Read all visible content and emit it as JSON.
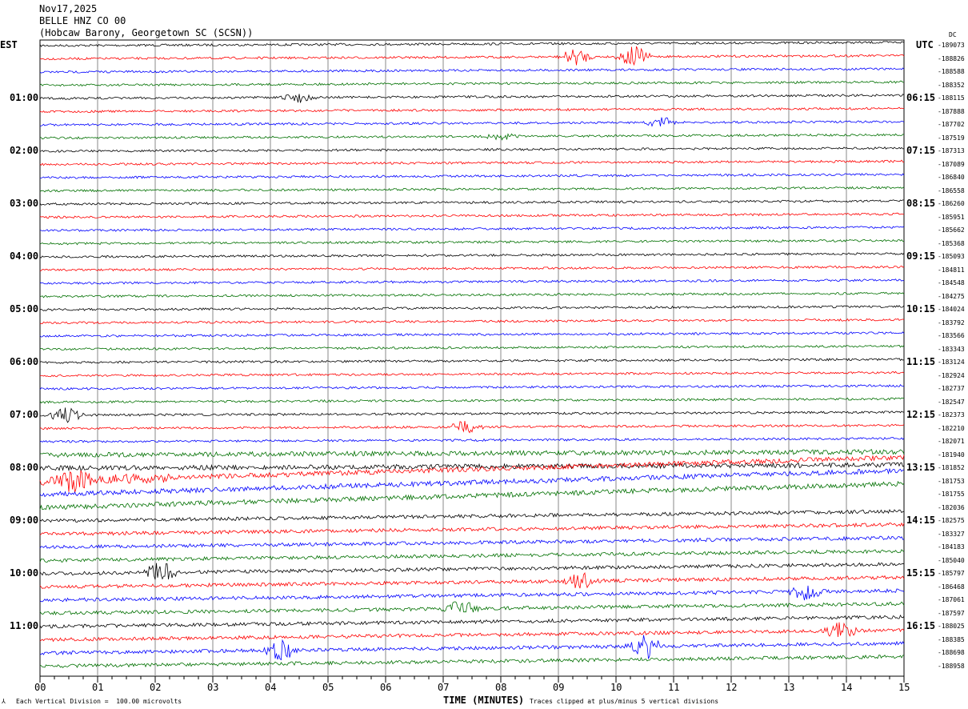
{
  "header": {
    "date": "Nov17,2025",
    "station": "BELLE HNZ CO 00",
    "location": "(Hobcaw Barony, Georgetown SC (SCSN))"
  },
  "left_tz": "EST",
  "right_tz": "UTC",
  "dc_label": "DC",
  "footer": {
    "scale_note": "Each Vertical Division =  100.00 microvolts",
    "xlabel": "TIME (MINUTES)",
    "clip_note": "Traces clipped at plus/minus 5 vertical divisions"
  },
  "chart_data": {
    "type": "line",
    "title": "BELLE HNZ CO 00 helicorder",
    "xlabel": "TIME (MINUTES)",
    "xlim": [
      0,
      15
    ],
    "x_ticks": [
      "00",
      "01",
      "02",
      "03",
      "04",
      "05",
      "06",
      "07",
      "08",
      "09",
      "10",
      "11",
      "12",
      "13",
      "14",
      "15"
    ],
    "rows": 48,
    "row_minutes": 15,
    "trace_colors": [
      "#000000",
      "#ff0000",
      "#0000ff",
      "#007000"
    ],
    "left_hour_labels": [
      "01:00",
      "02:00",
      "03:00",
      "04:00",
      "05:00",
      "06:00",
      "07:00",
      "08:00",
      "09:00",
      "10:00",
      "11:00"
    ],
    "right_hour_labels": [
      "06:15",
      "07:15",
      "08:15",
      "09:15",
      "10:15",
      "11:15",
      "12:15",
      "13:15",
      "14:15",
      "15:15",
      "16:15"
    ],
    "dc_offsets": [
      "-189073",
      "-188826",
      "-188588",
      "-188352",
      "-188115",
      "-187888",
      "-187702",
      "-187519",
      "-187313",
      "-187089",
      "-186840",
      "-186558",
      "-186260",
      "-185951",
      "-185662",
      "-185368",
      "-185093",
      "-184811",
      "-184548",
      "-184275",
      "-184024",
      "-183792",
      "-183566",
      "-183343",
      "-183124",
      "-182924",
      "-182737",
      "-182547",
      "-182373",
      "-182210",
      "-182071",
      "-181940",
      "-181852",
      "-181753",
      "-181755",
      "-182036",
      "-182575",
      "-183327",
      "-184183",
      "-185040",
      "-185797",
      "-186468",
      "-187061",
      "-187597",
      "-188025",
      "-188385",
      "-188698",
      "-188958"
    ]
  }
}
